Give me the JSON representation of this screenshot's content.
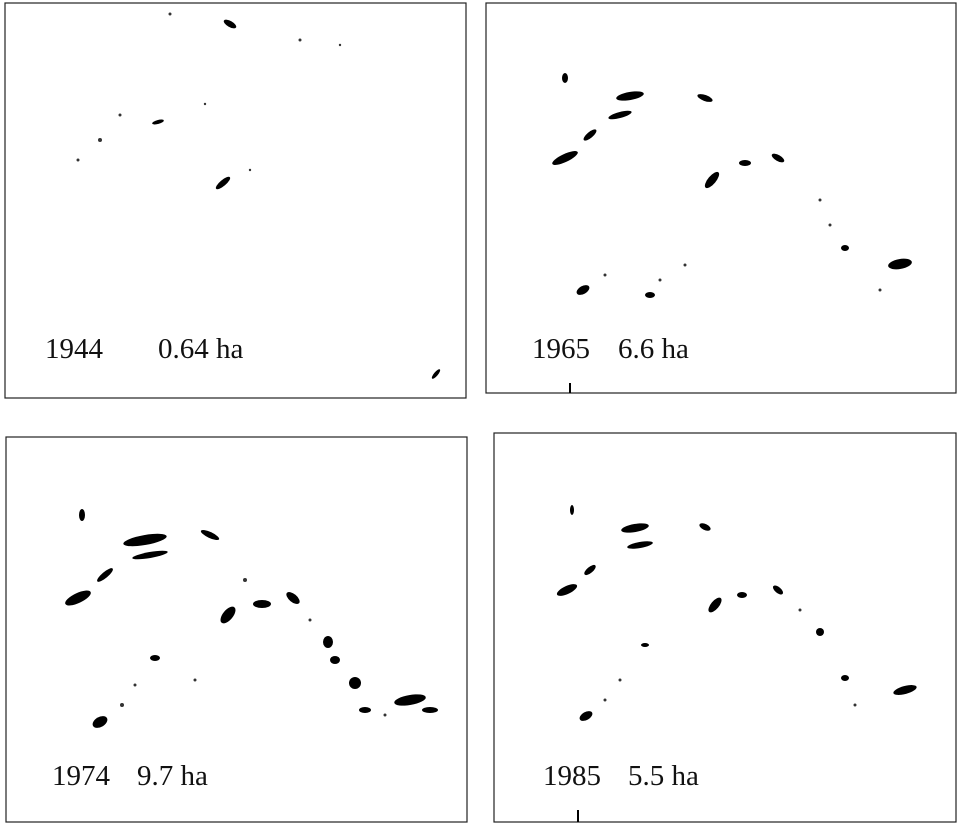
{
  "panels": [
    {
      "year": "1944",
      "area": "0.64 ha"
    },
    {
      "year": "1965",
      "area": "6.6 ha"
    },
    {
      "year": "1974",
      "area": "9.7 ha"
    },
    {
      "year": "1985",
      "area": "5.5 ha"
    }
  ]
}
